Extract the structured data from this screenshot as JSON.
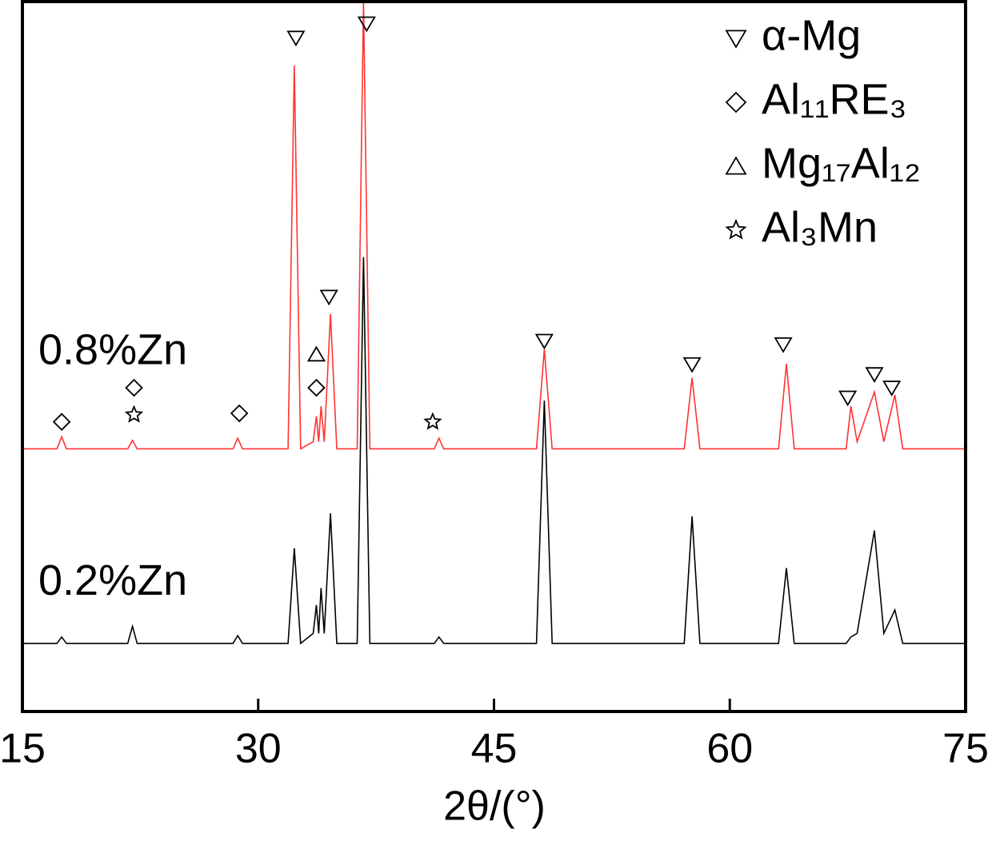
{
  "chart_data": {
    "type": "line",
    "xlabel": "2θ/(°)",
    "xlim": [
      15,
      75
    ],
    "xticks": [
      15,
      30,
      45,
      60,
      75
    ],
    "ylim": [
      0,
      100
    ],
    "series": [
      {
        "name": "0.8%Zn",
        "color": "#ff3333",
        "x": [
          15,
          17.2,
          17.5,
          17.8,
          21.7,
          22,
          22.3,
          28.4,
          28.7,
          29,
          31.9,
          32.3,
          32.7,
          33.5,
          33.7,
          33.85,
          34.0,
          34.2,
          34.6,
          35.0,
          36.3,
          36.7,
          37.1,
          41.2,
          41.5,
          41.8,
          47.7,
          48.2,
          48.7,
          57.1,
          57.6,
          58.1,
          63.1,
          63.6,
          64.1,
          67.4,
          67.7,
          68.1,
          69.2,
          69.8,
          70.5,
          71.0,
          75
        ],
        "values": [
          37,
          37,
          38.7,
          37,
          37,
          38.2,
          37,
          37,
          38.5,
          37,
          37,
          91,
          37,
          38,
          41.6,
          38,
          43,
          38,
          56,
          37,
          37,
          100,
          37,
          37,
          38.5,
          37,
          37,
          51,
          37,
          37,
          47,
          37,
          37,
          49,
          37,
          37,
          43,
          38,
          45,
          38,
          44.6,
          37,
          37
        ]
      },
      {
        "name": "0.2%Zn",
        "color": "#000000",
        "x": [
          15,
          17.2,
          17.5,
          17.8,
          21.7,
          22,
          22.3,
          28.4,
          28.7,
          29,
          31.9,
          32.3,
          32.7,
          33.5,
          33.7,
          33.85,
          34.0,
          34.2,
          34.6,
          35.0,
          36.3,
          36.7,
          37.1,
          41.2,
          41.5,
          41.8,
          47.7,
          48.2,
          48.7,
          57.1,
          57.6,
          58.1,
          63.1,
          63.6,
          64.1,
          67.4,
          67.7,
          68.1,
          69.2,
          69.8,
          70.5,
          71.0,
          75
        ],
        "values": [
          9.6,
          9.6,
          10.5,
          9.6,
          9.6,
          12,
          9.6,
          9.6,
          10.7,
          9.6,
          9.6,
          23,
          9.6,
          11,
          15,
          11,
          17.4,
          11,
          27.9,
          9.6,
          9.6,
          64,
          9.6,
          9.6,
          10.5,
          9.6,
          9.6,
          43.8,
          9.6,
          9.6,
          27.5,
          9.6,
          9.6,
          20.2,
          9.6,
          9.6,
          10.5,
          11,
          25.5,
          11,
          14.3,
          9.6,
          9.6
        ]
      }
    ],
    "phases": [
      {
        "name": "α-Mg",
        "symbol": "down-triangle"
      },
      {
        "name": "Al₁₁RE₃",
        "symbol": "diamond"
      },
      {
        "name": "Mg₁₇Al₁₂",
        "symbol": "triangle"
      },
      {
        "name": "Al₃Mn",
        "symbol": "star"
      }
    ],
    "markers": [
      {
        "phase": 0,
        "x": 32.4,
        "y": 94.9
      },
      {
        "phase": 0,
        "x": 36.9,
        "y": 96.9
      },
      {
        "phase": 0,
        "x": 34.5,
        "y": 58.4
      },
      {
        "phase": 0,
        "x": 48.2,
        "y": 52.2
      },
      {
        "phase": 0,
        "x": 57.6,
        "y": 48.9
      },
      {
        "phase": 0,
        "x": 63.4,
        "y": 51.7
      },
      {
        "phase": 0,
        "x": 67.5,
        "y": 44.2
      },
      {
        "phase": 0,
        "x": 69.2,
        "y": 47.5
      },
      {
        "phase": 0,
        "x": 70.3,
        "y": 45.6
      },
      {
        "phase": 1,
        "x": 17.5,
        "y": 40.8
      },
      {
        "phase": 1,
        "x": 22.1,
        "y": 45.6
      },
      {
        "phase": 1,
        "x": 28.8,
        "y": 42
      },
      {
        "phase": 1,
        "x": 33.7,
        "y": 45.6
      },
      {
        "phase": 2,
        "x": 33.7,
        "y": 50.3
      },
      {
        "phase": 3,
        "x": 22.1,
        "y": 41.8
      },
      {
        "phase": 3,
        "x": 41.1,
        "y": 40.8
      }
    ]
  }
}
